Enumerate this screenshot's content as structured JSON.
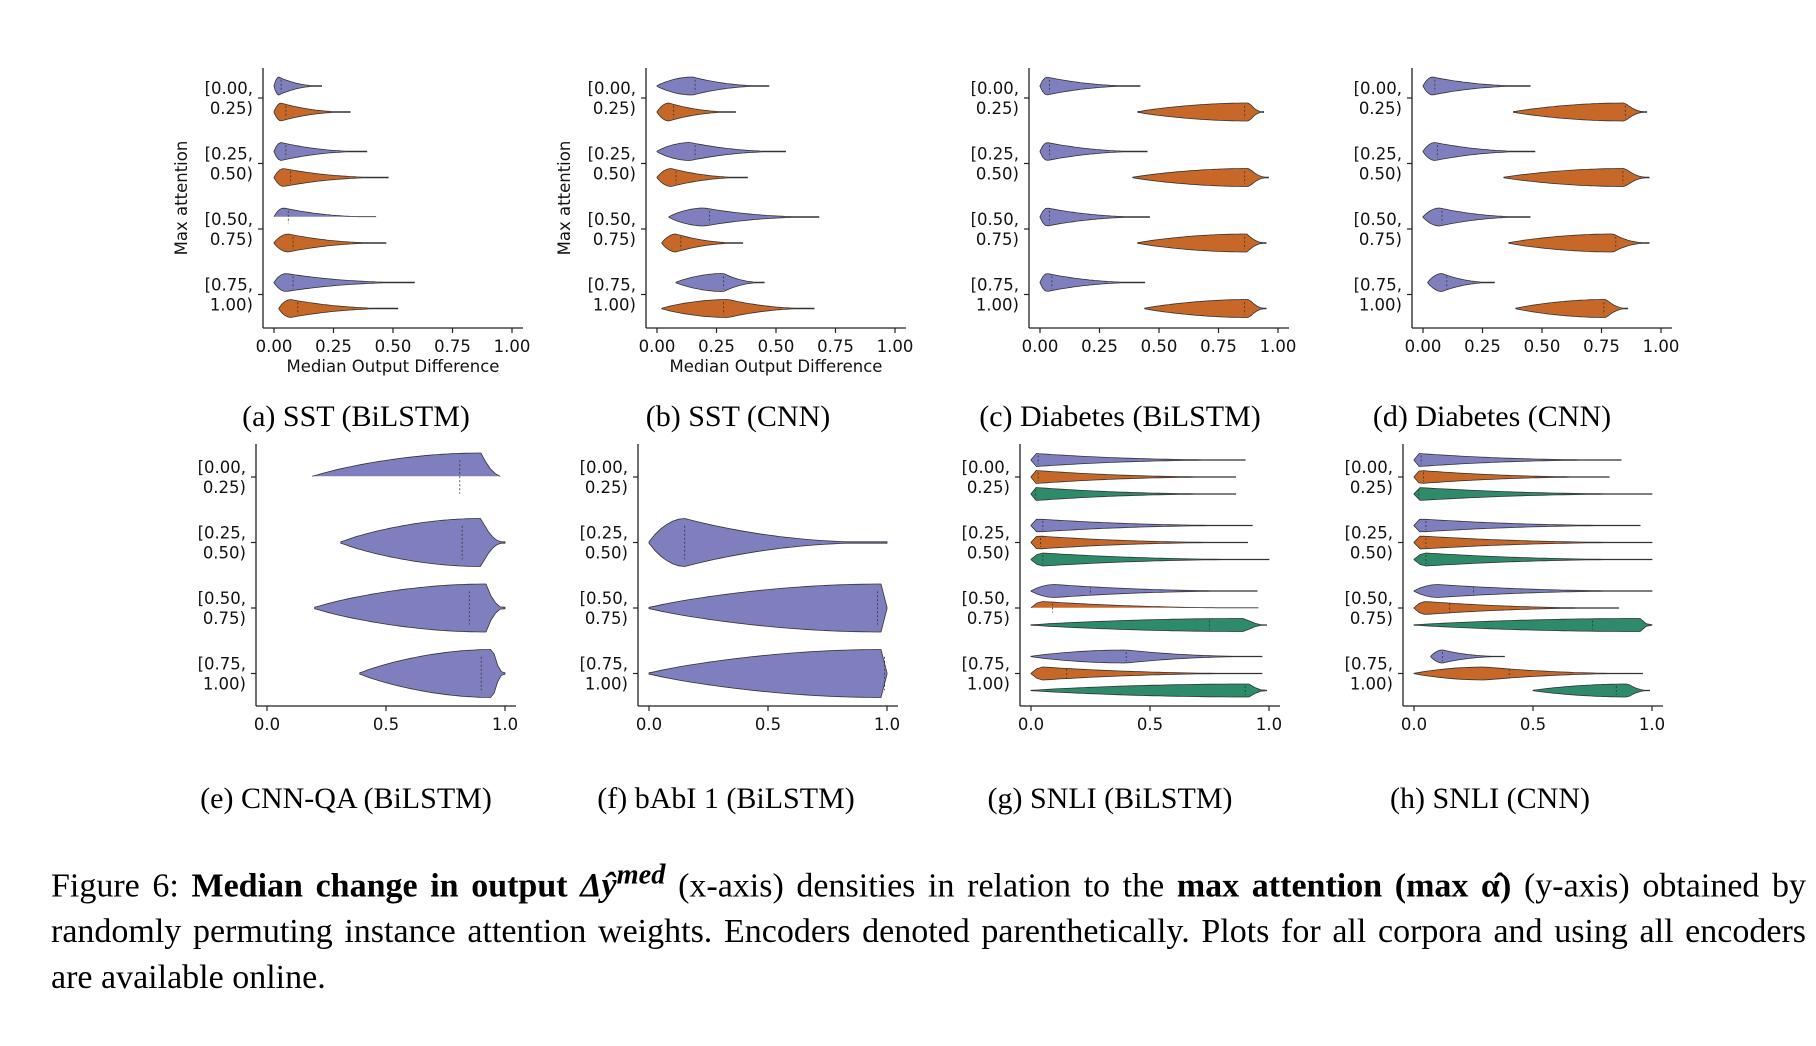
{
  "figure_caption": {
    "label": "Figure 6:",
    "bold1": "Median change in output",
    "math1": "Δŷ",
    "math1_sup": "med",
    "text1": "(x-axis) densities in relation to the",
    "bold2": "max attention (max α̂)",
    "text2": "(y-axis) obtained by randomly permuting instance attention weights. Encoders denoted parenthetically. Plots for all corpora and using all encoders are available online."
  },
  "colors": {
    "bilstm": "#7f7fbf",
    "cnn": "#c86828",
    "third": "#2e8b6a",
    "axis": "#222222"
  },
  "chart_data": [
    {
      "type": "violin",
      "caption": "(a) SST (BiLSTM)",
      "ylabel": "Max attention",
      "xlabel": "Median Output Difference",
      "y_categories": [
        "[0.00, 0.25)",
        "[0.25, 0.50)",
        "[0.50, 0.75)",
        "[0.75, 1.00)"
      ],
      "x_ticks": [
        "0.00",
        "0.25",
        "0.50",
        "0.75",
        "1.00"
      ],
      "xlim": [
        0,
        1
      ],
      "series": [
        {
          "color_key": "bilstm",
          "violins": [
            {
              "min": 0.0,
              "max": 0.2,
              "mode": 0.02,
              "median": 0.03
            },
            {
              "min": 0.0,
              "max": 0.39,
              "mode": 0.03,
              "median": 0.05
            },
            {
              "min": 0.0,
              "max": 0.44,
              "mode": 0.04,
              "median": 0.06
            },
            {
              "min": 0.0,
              "max": 0.59,
              "mode": 0.05,
              "median": 0.08
            }
          ]
        },
        {
          "color_key": "cnn",
          "violins": [
            {
              "min": 0.0,
              "max": 0.32,
              "mode": 0.03,
              "median": 0.05
            },
            {
              "min": 0.0,
              "max": 0.48,
              "mode": 0.04,
              "median": 0.07
            },
            {
              "min": 0.0,
              "max": 0.47,
              "mode": 0.06,
              "median": 0.08
            },
            {
              "min": 0.02,
              "max": 0.52,
              "mode": 0.07,
              "median": 0.1
            }
          ]
        }
      ]
    },
    {
      "type": "violin",
      "caption": "(b) SST (CNN)",
      "ylabel": "Max attention",
      "xlabel": "Median Output Difference",
      "y_categories": [
        "[0.00, 0.25)",
        "[0.25, 0.50)",
        "[0.50, 0.75)",
        "[0.75, 1.00)"
      ],
      "x_ticks": [
        "0.00",
        "0.25",
        "0.50",
        "0.75",
        "1.00"
      ],
      "xlim": [
        0,
        1
      ],
      "series": [
        {
          "color_key": "bilstm",
          "violins": [
            {
              "min": 0.0,
              "max": 0.47,
              "mode": 0.15,
              "median": 0.16
            },
            {
              "min": 0.0,
              "max": 0.54,
              "mode": 0.14,
              "median": 0.16
            },
            {
              "min": 0.05,
              "max": 0.68,
              "mode": 0.2,
              "median": 0.22
            },
            {
              "min": 0.08,
              "max": 0.45,
              "mode": 0.28,
              "median": 0.28
            }
          ]
        },
        {
          "color_key": "cnn",
          "violins": [
            {
              "min": 0.0,
              "max": 0.33,
              "mode": 0.05,
              "median": 0.07
            },
            {
              "min": 0.0,
              "max": 0.38,
              "mode": 0.06,
              "median": 0.08
            },
            {
              "min": 0.02,
              "max": 0.36,
              "mode": 0.08,
              "median": 0.1
            },
            {
              "min": 0.02,
              "max": 0.66,
              "mode": 0.3,
              "median": 0.28
            }
          ]
        }
      ]
    },
    {
      "type": "violin",
      "caption": "(c) Diabetes (BiLSTM)",
      "ylabel": "",
      "xlabel": "",
      "y_categories": [
        "[0.00, 0.25)",
        "[0.25, 0.50)",
        "[0.50, 0.75)",
        "[0.75, 1.00)"
      ],
      "x_ticks": [
        "0.00",
        "0.25",
        "0.50",
        "0.75",
        "1.00"
      ],
      "xlim": [
        0,
        1
      ],
      "series": [
        {
          "color_key": "bilstm",
          "violins": [
            {
              "min": 0.0,
              "max": 0.42,
              "mode": 0.03,
              "median": 0.04
            },
            {
              "min": 0.0,
              "max": 0.45,
              "mode": 0.03,
              "median": 0.04
            },
            {
              "min": 0.0,
              "max": 0.46,
              "mode": 0.03,
              "median": 0.04
            },
            {
              "min": 0.0,
              "max": 0.44,
              "mode": 0.03,
              "median": 0.05
            }
          ]
        },
        {
          "color_key": "cnn",
          "violins": [
            {
              "min": 0.41,
              "max": 0.94,
              "mode": 0.88,
              "median": 0.86
            },
            {
              "min": 0.39,
              "max": 0.96,
              "mode": 0.88,
              "median": 0.86
            },
            {
              "min": 0.41,
              "max": 0.95,
              "mode": 0.87,
              "median": 0.86
            },
            {
              "min": 0.44,
              "max": 0.95,
              "mode": 0.88,
              "median": 0.86
            }
          ]
        }
      ]
    },
    {
      "type": "violin",
      "caption": "(d) Diabetes (CNN)",
      "ylabel": "",
      "xlabel": "",
      "y_categories": [
        "[0.00, 0.25)",
        "[0.25, 0.50)",
        "[0.50, 0.75)",
        "[0.75, 1.00)"
      ],
      "x_ticks": [
        "0.00",
        "0.25",
        "0.50",
        "0.75",
        "1.00"
      ],
      "xlim": [
        0,
        1
      ],
      "series": [
        {
          "color_key": "bilstm",
          "violins": [
            {
              "min": 0.0,
              "max": 0.45,
              "mode": 0.04,
              "median": 0.05
            },
            {
              "min": 0.0,
              "max": 0.47,
              "mode": 0.05,
              "median": 0.06
            },
            {
              "min": 0.0,
              "max": 0.45,
              "mode": 0.07,
              "median": 0.08
            },
            {
              "min": 0.02,
              "max": 0.3,
              "mode": 0.08,
              "median": 0.1
            }
          ]
        },
        {
          "color_key": "cnn",
          "violins": [
            {
              "min": 0.38,
              "max": 0.94,
              "mode": 0.85,
              "median": 0.85
            },
            {
              "min": 0.34,
              "max": 0.95,
              "mode": 0.85,
              "median": 0.84
            },
            {
              "min": 0.36,
              "max": 0.95,
              "mode": 0.8,
              "median": 0.81
            },
            {
              "min": 0.39,
              "max": 0.86,
              "mode": 0.77,
              "median": 0.76
            }
          ]
        }
      ]
    },
    {
      "type": "violin",
      "caption": "(e) CNN-QA (BiLSTM)",
      "ylabel": "",
      "xlabel": "",
      "y_categories": [
        "[0.00, 0.25)",
        "[0.25, 0.50)",
        "[0.50, 0.75)",
        "[0.75, 1.00)"
      ],
      "x_ticks": [
        "0.0",
        "0.5",
        "1.0"
      ],
      "xlim": [
        0,
        1
      ],
      "series": [
        {
          "color_key": "bilstm",
          "violins": [
            {
              "min": 0.19,
              "max": 1.0,
              "mode": 0.9,
              "median": 0.81
            },
            {
              "min": 0.31,
              "max": 1.0,
              "mode": 0.9,
              "median": 0.82
            },
            {
              "min": 0.2,
              "max": 1.0,
              "mode": 0.92,
              "median": 0.85
            },
            {
              "min": 0.39,
              "max": 1.0,
              "mode": 0.95,
              "median": 0.9
            }
          ]
        }
      ]
    },
    {
      "type": "violin",
      "caption": "(f) bAbI 1 (BiLSTM)",
      "ylabel": "",
      "xlabel": "",
      "y_categories": [
        "[0.00, 0.25)",
        "[0.25, 0.50)",
        "[0.50, 0.75)",
        "[0.75, 1.00)"
      ],
      "x_ticks": [
        "0.0",
        "0.5",
        "1.0"
      ],
      "xlim": [
        0,
        1
      ],
      "series": [
        {
          "color_key": "bilstm",
          "violins": [
            {
              "min": 0.0,
              "max": 1.0,
              "mode": 0.15,
              "median": 0.15
            },
            {
              "min": 0.0,
              "max": 1.0,
              "mode": 0.98,
              "median": 0.96
            },
            {
              "min": 0.0,
              "max": 1.0,
              "mode": 0.98,
              "median": 0.99
            }
          ]
        }
      ],
      "row_offset": 1
    },
    {
      "type": "violin",
      "caption": "(g) SNLI (BiLSTM)",
      "ylabel": "",
      "xlabel": "",
      "y_categories": [
        "[0.00, 0.25)",
        "[0.25, 0.50)",
        "[0.50, 0.75)",
        "[0.75, 1.00)"
      ],
      "x_ticks": [
        "0.0",
        "0.5",
        "1.0"
      ],
      "xlim": [
        0,
        1
      ],
      "series": [
        {
          "color_key": "bilstm",
          "violins": [
            {
              "min": 0.0,
              "max": 0.9,
              "mode": 0.02,
              "median": 0.03
            },
            {
              "min": 0.0,
              "max": 0.93,
              "mode": 0.03,
              "median": 0.05
            },
            {
              "min": 0.0,
              "max": 0.95,
              "mode": 0.1,
              "median": 0.25
            },
            {
              "min": 0.0,
              "max": 0.97,
              "mode": 0.4,
              "median": 0.4
            }
          ]
        },
        {
          "color_key": "cnn",
          "violins": [
            {
              "min": 0.0,
              "max": 0.86,
              "mode": 0.02,
              "median": 0.03
            },
            {
              "min": 0.0,
              "max": 0.91,
              "mode": 0.03,
              "median": 0.04
            },
            {
              "min": 0.0,
              "max": 0.98,
              "mode": 0.05,
              "median": 0.09
            },
            {
              "min": 0.0,
              "max": 0.97,
              "mode": 0.05,
              "median": 0.15
            }
          ]
        },
        {
          "color_key": "third",
          "violins": [
            {
              "min": 0.0,
              "max": 0.86,
              "mode": 0.02,
              "median": 0.02
            },
            {
              "min": 0.0,
              "max": 1.0,
              "mode": 0.05,
              "median": 0.05
            },
            {
              "min": 0.0,
              "max": 0.99,
              "mode": 0.9,
              "median": 0.75
            },
            {
              "min": 0.0,
              "max": 0.99,
              "mode": 0.92,
              "median": 0.9
            }
          ]
        }
      ]
    },
    {
      "type": "violin",
      "caption": "(h) SNLI (CNN)",
      "ylabel": "",
      "xlabel": "",
      "y_categories": [
        "[0.00, 0.25)",
        "[0.25, 0.50)",
        "[0.50, 0.75)",
        "[0.75, 1.00)"
      ],
      "x_ticks": [
        "0.0",
        "0.5",
        "1.0"
      ],
      "xlim": [
        0,
        1
      ],
      "series": [
        {
          "color_key": "bilstm",
          "violins": [
            {
              "min": 0.0,
              "max": 0.87,
              "mode": 0.02,
              "median": 0.03
            },
            {
              "min": 0.0,
              "max": 0.95,
              "mode": 0.03,
              "median": 0.05
            },
            {
              "min": 0.0,
              "max": 1.0,
              "mode": 0.1,
              "median": 0.25
            },
            {
              "min": 0.07,
              "max": 0.38,
              "mode": 0.12,
              "median": 0.12
            }
          ]
        },
        {
          "color_key": "cnn",
          "violins": [
            {
              "min": 0.0,
              "max": 0.82,
              "mode": 0.03,
              "median": 0.04
            },
            {
              "min": 0.0,
              "max": 1.0,
              "mode": 0.03,
              "median": 0.05
            },
            {
              "min": 0.0,
              "max": 0.86,
              "mode": 0.05,
              "median": 0.15
            },
            {
              "min": 0.0,
              "max": 0.96,
              "mode": 0.3,
              "median": 0.4
            }
          ]
        },
        {
          "color_key": "third",
          "violins": [
            {
              "min": 0.0,
              "max": 1.0,
              "mode": 0.02,
              "median": 0.02
            },
            {
              "min": 0.0,
              "max": 1.0,
              "mode": 0.05,
              "median": 0.05
            },
            {
              "min": 0.0,
              "max": 1.0,
              "mode": 0.95,
              "median": 0.75
            },
            {
              "min": 0.5,
              "max": 0.99,
              "mode": 0.9,
              "median": 0.85
            }
          ]
        }
      ]
    }
  ]
}
